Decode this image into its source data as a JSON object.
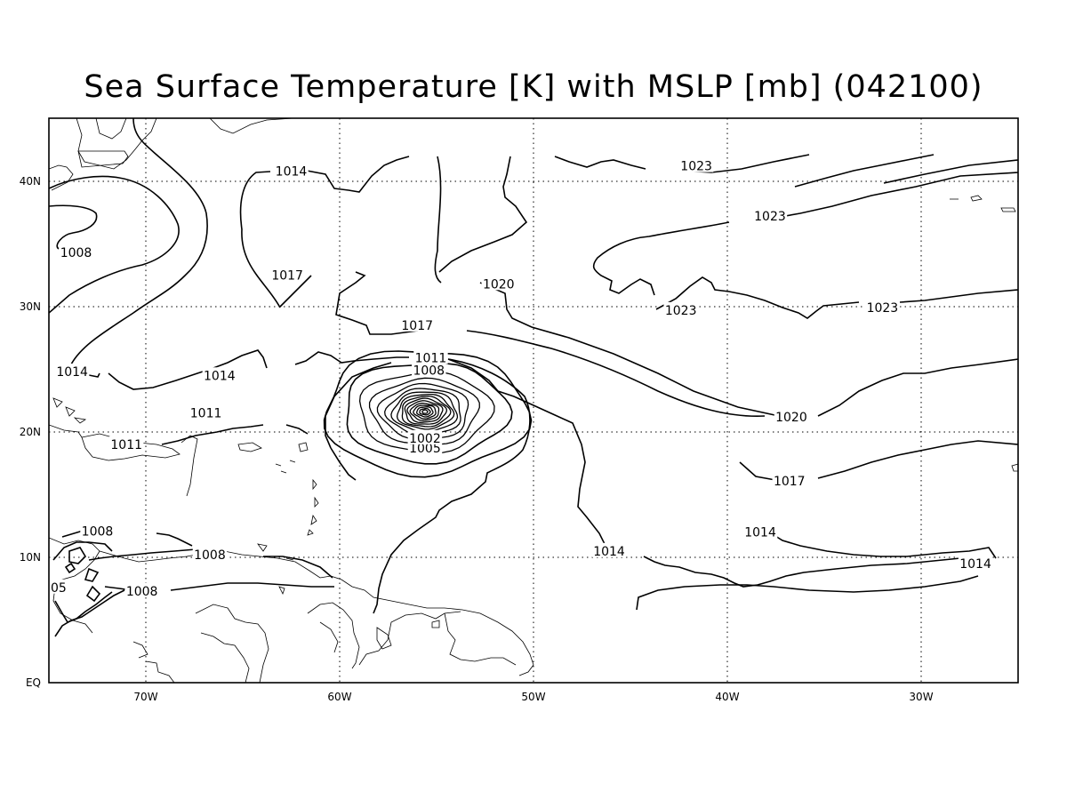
{
  "title": "Sea Surface Temperature [K] with MSLP [mb] (042100)",
  "axes": {
    "x_ticks": [
      "70W",
      "60W",
      "50W",
      "40W",
      "30W"
    ],
    "y_ticks": [
      "EQ",
      "10N",
      "20N",
      "30N",
      "40N"
    ]
  },
  "contour_labels": [
    {
      "text": "1014",
      "lon": -62.5,
      "lat": 40.8
    },
    {
      "text": "1008",
      "lon": -73.6,
      "lat": 34.3
    },
    {
      "text": "1017",
      "lon": -62.7,
      "lat": 32.5
    },
    {
      "text": "1020",
      "lon": -51.8,
      "lat": 31.8
    },
    {
      "text": "1023",
      "lon": -41.6,
      "lat": 41.2
    },
    {
      "text": "1023",
      "lon": -37.8,
      "lat": 37.2
    },
    {
      "text": "1023",
      "lon": -42.4,
      "lat": 29.7
    },
    {
      "text": "1023",
      "lon": -32.0,
      "lat": 29.9
    },
    {
      "text": "1017",
      "lon": -56.0,
      "lat": 28.5
    },
    {
      "text": "1014",
      "lon": -73.8,
      "lat": 24.8
    },
    {
      "text": "1014",
      "lon": -66.2,
      "lat": 24.5
    },
    {
      "text": "1011",
      "lon": -55.3,
      "lat": 25.9
    },
    {
      "text": "1008",
      "lon": -55.4,
      "lat": 24.9
    },
    {
      "text": "1020",
      "lon": -36.7,
      "lat": 21.2
    },
    {
      "text": "1011",
      "lon": -66.9,
      "lat": 21.5
    },
    {
      "text": "1011",
      "lon": -71.0,
      "lat": 19.0
    },
    {
      "text": "1005",
      "lon": -55.6,
      "lat": 18.7
    },
    {
      "text": "1002",
      "lon": -55.6,
      "lat": 19.5
    },
    {
      "text": "1017",
      "lon": -36.8,
      "lat": 16.1
    },
    {
      "text": "1008",
      "lon": -72.5,
      "lat": 12.1
    },
    {
      "text": "1014",
      "lon": -38.3,
      "lat": 12.0
    },
    {
      "text": "1014",
      "lon": -46.1,
      "lat": 10.5
    },
    {
      "text": "1008",
      "lon": -66.7,
      "lat": 10.2
    },
    {
      "text": "1014",
      "lon": -27.2,
      "lat": 9.5
    },
    {
      "text": "1008",
      "lon": -70.2,
      "lat": 7.3
    },
    {
      "text": "05",
      "lon": -74.5,
      "lat": 7.6
    }
  ],
  "center_low": {
    "lon": -55.6,
    "lat": 21.6
  }
}
